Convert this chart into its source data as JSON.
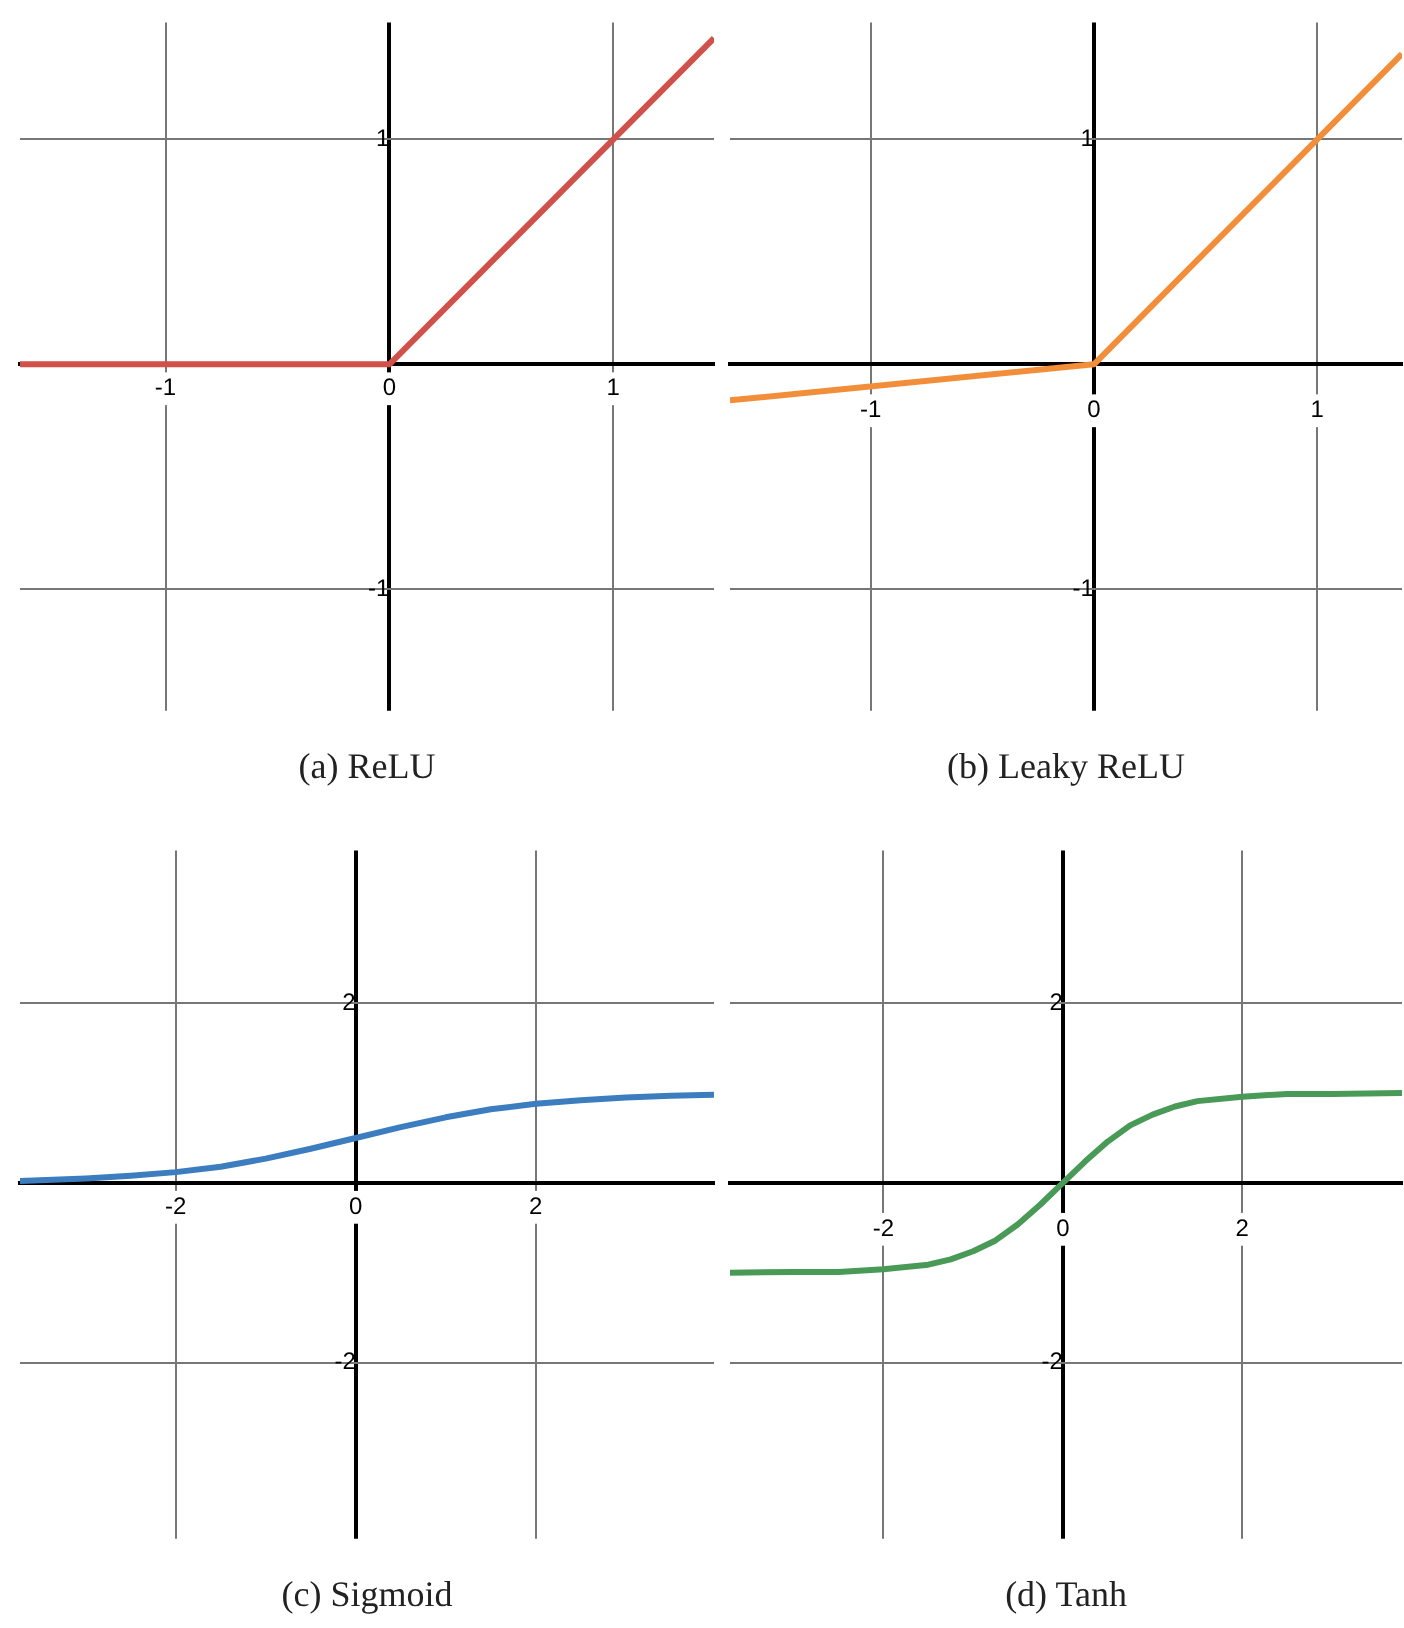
{
  "chart_data": [
    {
      "type": "line",
      "title": "(a) ReLU",
      "color": "#d0504a",
      "marker": "none",
      "grid": true,
      "xlim": [
        -1.65,
        1.45
      ],
      "ylim": [
        -1.54,
        1.52
      ],
      "xticks": [
        -1,
        0,
        1
      ],
      "yticks": [
        -1,
        1
      ],
      "x": [
        -1.65,
        0,
        1.45
      ],
      "values": [
        0,
        0,
        1.45
      ]
    },
    {
      "type": "line",
      "title": "(b) Leaky ReLU",
      "color": "#f28e3a",
      "marker": "none",
      "grid": true,
      "xlim": [
        -1.63,
        1.38
      ],
      "ylim": [
        -1.54,
        1.52
      ],
      "xticks": [
        -1,
        0,
        1
      ],
      "yticks": [
        -1,
        1
      ],
      "x": [
        -1.63,
        0,
        1.38
      ],
      "values": [
        -0.16,
        0,
        1.38
      ]
    },
    {
      "type": "line",
      "title": "(c) Sigmoid",
      "color": "#3b7dbf",
      "marker": "none",
      "grid": true,
      "xlim": [
        -3.73,
        3.98
      ],
      "ylim": [
        -3.96,
        3.7
      ],
      "xticks": [
        -2,
        0,
        2
      ],
      "yticks": [
        -2,
        2
      ],
      "x": [
        -3.73,
        -3,
        -2.5,
        -2,
        -1.5,
        -1,
        -0.5,
        0,
        0.5,
        1,
        1.5,
        2,
        2.5,
        3,
        3.5,
        3.98
      ],
      "values": [
        0.02,
        0.05,
        0.08,
        0.12,
        0.18,
        0.27,
        0.38,
        0.5,
        0.62,
        0.73,
        0.82,
        0.88,
        0.92,
        0.95,
        0.97,
        0.98
      ]
    },
    {
      "type": "line",
      "title": "(d) Tanh",
      "color": "#4a9a57",
      "marker": "none",
      "grid": true,
      "xlim": [
        -3.71,
        3.78
      ],
      "ylim": [
        -3.96,
        3.7
      ],
      "xticks": [
        -2,
        0,
        2
      ],
      "yticks": [
        -2,
        2
      ],
      "x": [
        -3.71,
        -3,
        -2.5,
        -2,
        -1.5,
        -1.25,
        -1,
        -0.75,
        -0.5,
        -0.25,
        0,
        0.25,
        0.5,
        0.75,
        1,
        1.25,
        1.5,
        2,
        2.5,
        3,
        3.78
      ],
      "values": [
        -1,
        -0.99,
        -0.99,
        -0.96,
        -0.91,
        -0.85,
        -0.76,
        -0.64,
        -0.46,
        -0.24,
        0,
        0.24,
        0.46,
        0.64,
        0.76,
        0.85,
        0.91,
        0.96,
        0.99,
        0.99,
        1
      ]
    }
  ]
}
